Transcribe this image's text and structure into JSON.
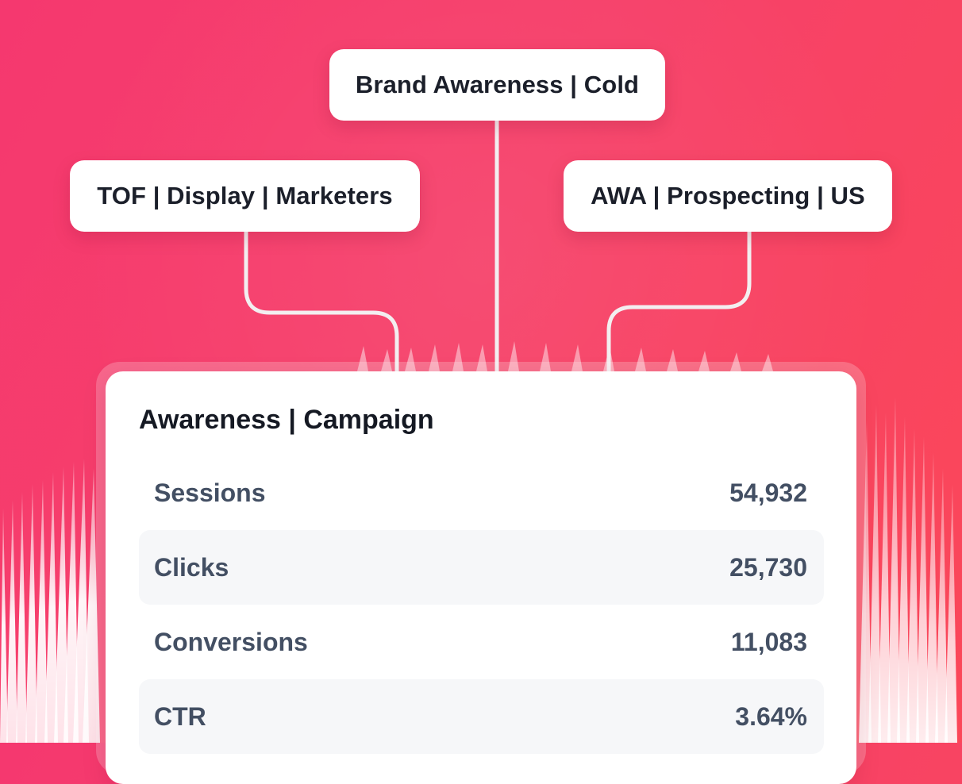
{
  "tags": {
    "brand": "Brand Awareness | Cold",
    "tof": "TOF | Display | Marketers",
    "awa": "AWA | Prospecting | US"
  },
  "card": {
    "title": "Awareness | Campaign",
    "metrics": [
      {
        "label": "Sessions",
        "value": "54,932"
      },
      {
        "label": "Clicks",
        "value": "25,730"
      },
      {
        "label": "Conversions",
        "value": "11,083"
      },
      {
        "label": "CTR",
        "value": "3.64%"
      }
    ]
  },
  "colors": {
    "background_start": "#f5386f",
    "background_end": "#fb4758",
    "card": "#ffffff",
    "row_shade": "#f6f7f9",
    "title_text": "#151923",
    "metric_text": "#434f63"
  }
}
